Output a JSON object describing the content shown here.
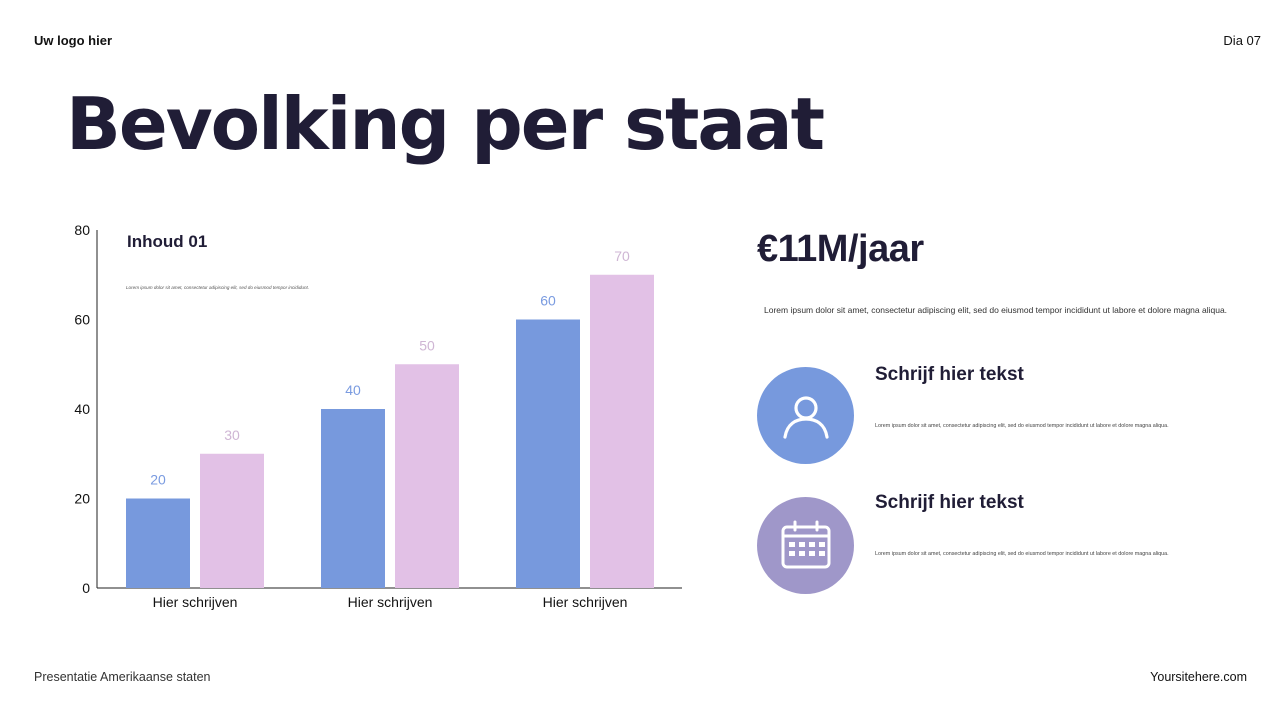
{
  "header": {
    "logo_text": "Uw logo hier",
    "slide_number": "Dia 07"
  },
  "title": "Bevolking per staat",
  "chart_content": {
    "title": "Inhoud 01",
    "text": "Lorem ipsum dolor sit amet, consectetur adipiscing elit, sed do eiusmod tempor incididunt."
  },
  "chart_data": {
    "type": "bar",
    "categories": [
      "Hier schrijven",
      "Hier schrijven",
      "Hier schrijven"
    ],
    "series": [
      {
        "values": [
          20,
          40,
          60
        ],
        "color": "#7799dd"
      },
      {
        "values": [
          30,
          50,
          70
        ],
        "color": "#e2c1e6"
      }
    ],
    "ylim": [
      0,
      80
    ],
    "yticks": [
      0,
      20,
      40,
      60,
      80
    ],
    "data_labels": true,
    "label_colors": [
      "#7a9be0",
      "#cfb6d4"
    ],
    "grid": false,
    "legend": "none"
  },
  "info": {
    "price": "€11M/jaar",
    "price_text": "Lorem ipsum dolor sit amet, consectetur adipiscing elit, sed do eiusmod tempor incididunt ut labore et dolore magna aliqua.",
    "features": [
      {
        "icon": "user-icon",
        "color": "#7799dd",
        "title": "Schrijf hier tekst",
        "text": "Lorem ipsum dolor sit amet, consectetur adipiscing elit, sed do eiusmod tempor incididunt ut labore et dolore magna aliqua."
      },
      {
        "icon": "calendar-icon",
        "color": "#9f97c9",
        "title": "Schrijf hier tekst",
        "text": "Lorem ipsum dolor sit amet, consectetur adipiscing elit, sed do eiusmod tempor incididunt ut labore et dolore magna aliqua."
      }
    ]
  },
  "footer": {
    "left": "Presentatie Amerikaanse staten",
    "right": "Yoursitehere.com"
  }
}
